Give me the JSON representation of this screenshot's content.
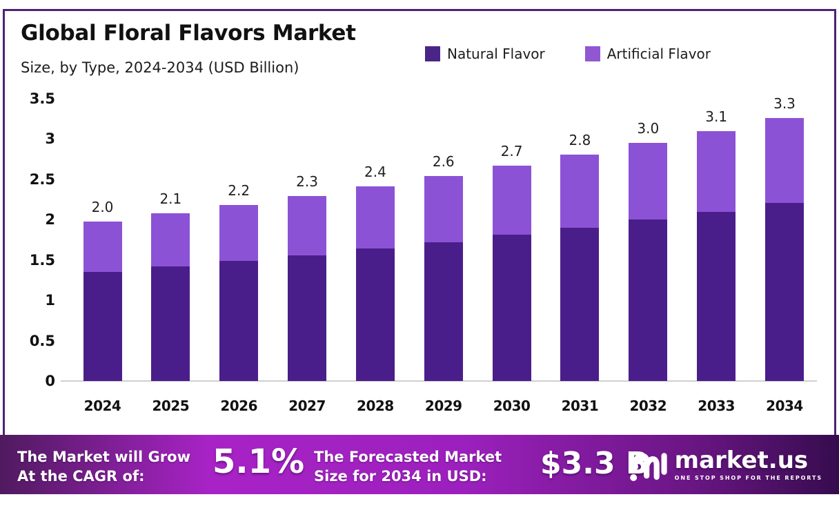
{
  "header": {
    "title": "Global Floral Flavors Market",
    "subtitle": "Size, by Type, 2024-2034 (USD Billion)"
  },
  "legend": {
    "items": [
      {
        "label": "Natural Flavor",
        "color": "#4A2589"
      },
      {
        "label": "Artificial Flavor",
        "color": "#9157D2"
      }
    ]
  },
  "chart_data": {
    "type": "bar",
    "stacked": true,
    "title": "Global Floral Flavors Market Size, by Type, 2024-2034 (USD Billion)",
    "categories": [
      "2024",
      "2025",
      "2026",
      "2027",
      "2028",
      "2029",
      "2030",
      "2031",
      "2032",
      "2033",
      "2034"
    ],
    "series": [
      {
        "name": "Natural Flavor",
        "color": "#4A1E8A",
        "values": [
          1.35,
          1.42,
          1.49,
          1.56,
          1.64,
          1.72,
          1.81,
          1.9,
          2.0,
          2.1,
          2.21
        ]
      },
      {
        "name": "Artificial Flavor",
        "color": "#8C52D6",
        "values": [
          0.63,
          0.66,
          0.69,
          0.73,
          0.77,
          0.82,
          0.86,
          0.91,
          0.95,
          1.0,
          1.05
        ]
      }
    ],
    "total_labels": [
      "2.0",
      "2.1",
      "2.2",
      "2.3",
      "2.4",
      "2.6",
      "2.7",
      "2.8",
      "3.0",
      "3.1",
      "3.3"
    ],
    "xlabel": "",
    "ylabel": "",
    "ylim": [
      0,
      3.5
    ],
    "yticks": [
      0,
      0.5,
      1,
      1.5,
      2,
      2.5,
      3,
      3.5
    ],
    "ytick_labels": [
      "0",
      "0.5",
      "1",
      "1.5",
      "2",
      "2.5",
      "3",
      "3.5"
    ],
    "grid": false,
    "legend_position": "top-right"
  },
  "banner": {
    "cagr_line1": "The Market will Grow",
    "cagr_line2": "At the CAGR of:",
    "cagr_value": "5.1%",
    "forecast_line1": "The Forecasted Market",
    "forecast_line2": "Size for 2034 in USD:",
    "forecast_value": "$3.3 B",
    "brand_name": "market.us",
    "brand_tagline": "ONE STOP SHOP FOR THE REPORTS"
  },
  "colors": {
    "frame_border": "#4D2277",
    "natural_bar": "#4A1E8A",
    "artificial_bar": "#8C52D6",
    "axis_line": "#cfcfcf",
    "banner_gradient_start": "#501A5F",
    "banner_gradient_mid": "#A823C6",
    "banner_gradient_end": "#360C4E",
    "text_dark": "#111111",
    "text_white": "#ffffff"
  }
}
